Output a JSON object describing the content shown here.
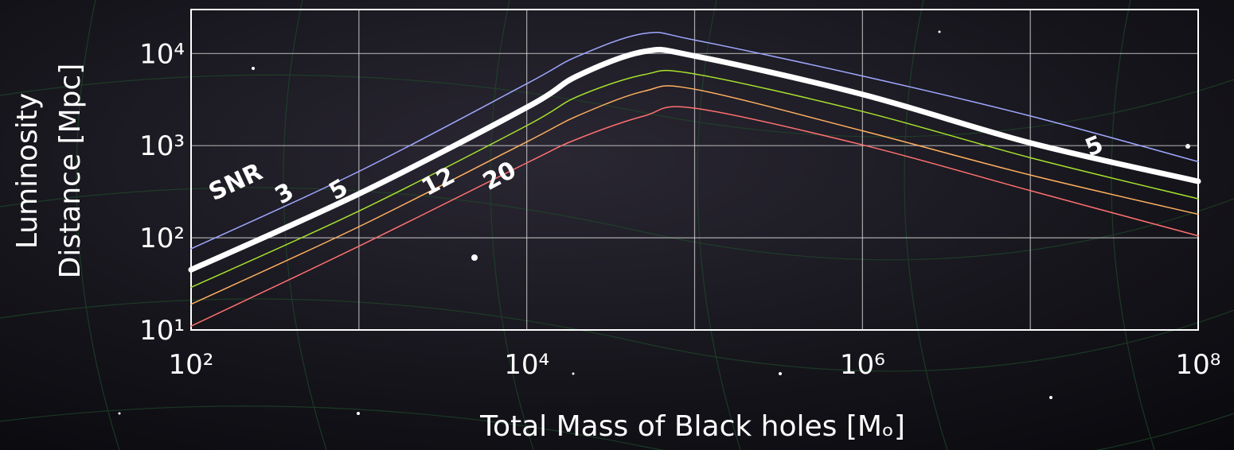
{
  "chart_data": {
    "type": "line",
    "x_label": "Total Mass of Black holes  [Mₒ]",
    "y_label": [
      "Luminosity",
      "Distance [Mpc]"
    ],
    "annotation": "SNR",
    "log_x": true,
    "log_y": true,
    "grid": true,
    "x": [
      100,
      1000,
      10000,
      20000,
      50000,
      100000,
      1000000,
      10000000,
      100000000
    ],
    "xlim": [
      100,
      100000000
    ],
    "ylim": [
      10,
      30000
    ],
    "xticks": [
      {
        "value": 100,
        "label": "10²"
      },
      {
        "value": 1000
      },
      {
        "value": 10000,
        "label": "10⁴"
      },
      {
        "value": 100000
      },
      {
        "value": 1000000,
        "label": "10⁶"
      },
      {
        "value": 10000000
      },
      {
        "value": 100000000,
        "label": "10⁸"
      }
    ],
    "yticks": [
      {
        "value": 10,
        "label": "10¹"
      },
      {
        "value": 100,
        "label": "10²"
      },
      {
        "value": 1000,
        "label": "10³"
      },
      {
        "value": 10000,
        "label": "10⁴"
      }
    ],
    "series": [
      {
        "name": "3",
        "color": "#9fa8ff",
        "width": 1.5,
        "values": [
          76,
          525,
          4700,
          9300,
          16500,
          14000,
          5700,
          2100,
          670
        ]
      },
      {
        "name": "5",
        "color": "#ffffff",
        "width": 7,
        "values": [
          45,
          300,
          2600,
          5700,
          10500,
          9400,
          3600,
          1070,
          410
        ]
      },
      {
        "color": "#a6e22e",
        "width": 1.5,
        "values": [
          29,
          195,
          1650,
          3400,
          5900,
          6000,
          2350,
          740,
          265
        ]
      },
      {
        "name": "12",
        "color": "#ffb060",
        "width": 1.5,
        "values": [
          19,
          132,
          1100,
          2100,
          3900,
          4100,
          1450,
          480,
          180
        ]
      },
      {
        "name": "20",
        "color": "#ff7070",
        "width": 1.5,
        "values": [
          11,
          81,
          650,
          1180,
          2100,
          2550,
          1020,
          325,
          105
        ]
      }
    ]
  }
}
